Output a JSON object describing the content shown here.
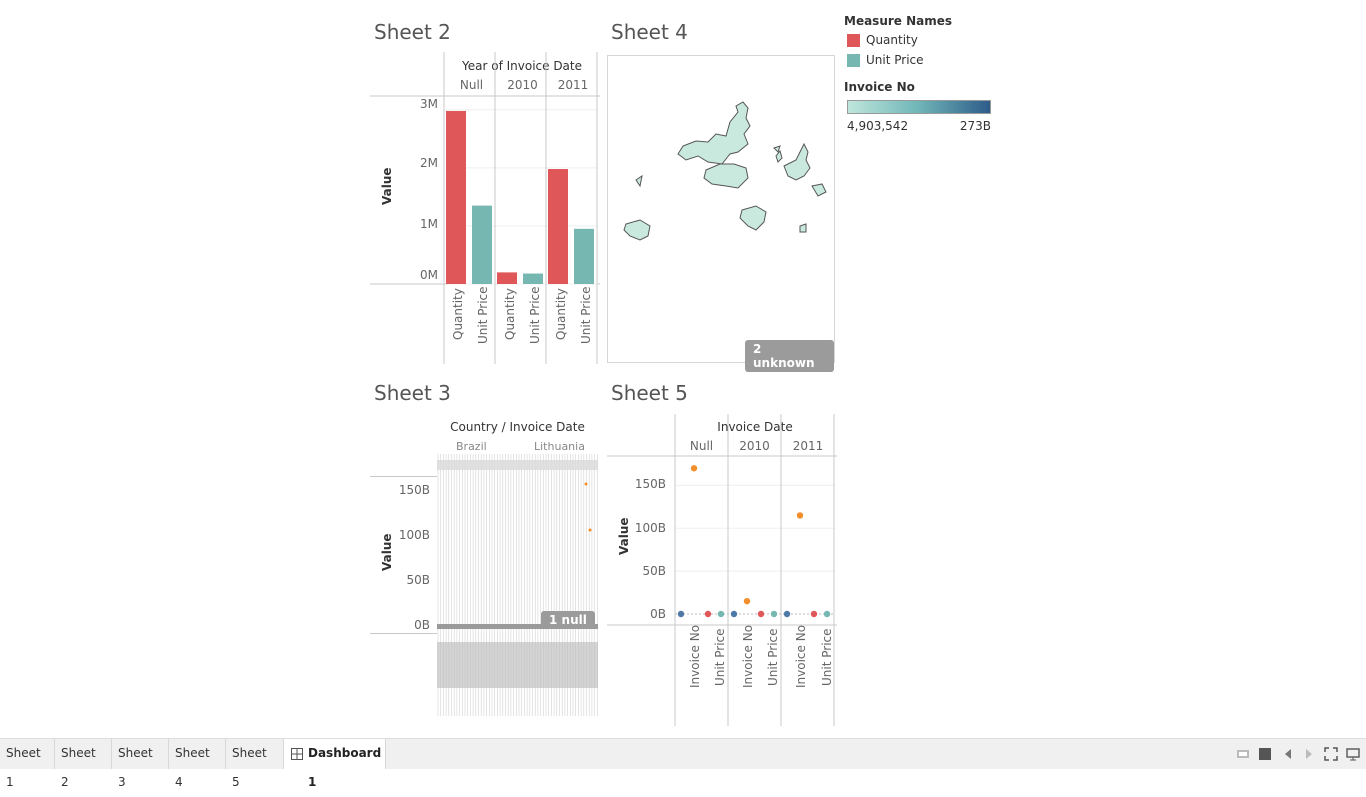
{
  "sheet2": {
    "title": "Sheet 2",
    "header": "Year of Invoice Date",
    "years": [
      "Null",
      "2010",
      "2011"
    ],
    "ylabel": "Value",
    "yticks": [
      "3M",
      "2M",
      "1M",
      "0M"
    ],
    "xlabels": [
      "Quantity",
      "Unit Price",
      "Quantity",
      "Unit Price",
      "Quantity",
      "Unit Price"
    ]
  },
  "sheet4": {
    "title": "Sheet 4",
    "unknown_badge": "2 unknown"
  },
  "sheet3": {
    "title": "Sheet 3",
    "header": "Country / Invoice Date",
    "countries_visible": [
      "Brazil",
      "Lithuania"
    ],
    "ylabel": "Value",
    "yticks": [
      "150B",
      "100B",
      "50B",
      "0B"
    ],
    "null_badge": "1 null"
  },
  "sheet5": {
    "title": "Sheet 5",
    "header": "Invoice Date",
    "years": [
      "Null",
      "2010",
      "2011"
    ],
    "ylabel": "Value",
    "yticks": [
      "150B",
      "100B",
      "50B",
      "0B"
    ],
    "xlabels": [
      "Invoice No",
      "Unit Price",
      "Invoice No",
      "Unit Price",
      "Invoice No",
      "Unit Price"
    ]
  },
  "legend": {
    "measure_title": "Measure Names",
    "items": [
      {
        "label": "Quantity",
        "color": "#e05759"
      },
      {
        "label": "Unit Price",
        "color": "#76b7b2"
      }
    ],
    "invoice_title": "Invoice No",
    "invoice_min": "4,903,542",
    "invoice_max": "273B",
    "gradient": [
      "#bfe6dc",
      "#2e5c8a"
    ]
  },
  "tabs": [
    {
      "label": "Sheet 1"
    },
    {
      "label": "Sheet 2"
    },
    {
      "label": "Sheet 3"
    },
    {
      "label": "Sheet 4"
    },
    {
      "label": "Sheet 5"
    },
    {
      "label": "Dashboard 1"
    }
  ],
  "chart_data": [
    {
      "type": "bar",
      "title": "Sheet 2",
      "categories": [
        "Null",
        "2010",
        "2011"
      ],
      "series": [
        {
          "name": "Quantity",
          "values": [
            2.98,
            0.2,
            1.98
          ],
          "color": "#e05759"
        },
        {
          "name": "Unit Price",
          "values": [
            1.35,
            0.18,
            0.95
          ],
          "color": "#76b7b2"
        }
      ],
      "ylabel": "Value",
      "yunit": "M",
      "ylim": [
        0,
        3.1
      ]
    },
    {
      "type": "scatter",
      "title": "Sheet 5",
      "categories": [
        "Null",
        "2010",
        "2011"
      ],
      "series": [
        {
          "name": "Invoice No",
          "values": [
            170,
            15,
            115
          ],
          "color": "#f28e2b"
        },
        {
          "name": "Invoice No",
          "values": [
            0,
            0,
            0
          ],
          "color": "#4e79a7"
        },
        {
          "name": "Quantity",
          "values": [
            0,
            0,
            0
          ],
          "color": "#e05759"
        },
        {
          "name": "Unit Price",
          "values": [
            0,
            0,
            0
          ],
          "color": "#76b7b2"
        }
      ],
      "ylabel": "Value",
      "yunit": "B",
      "ylim": [
        0,
        175
      ]
    }
  ]
}
